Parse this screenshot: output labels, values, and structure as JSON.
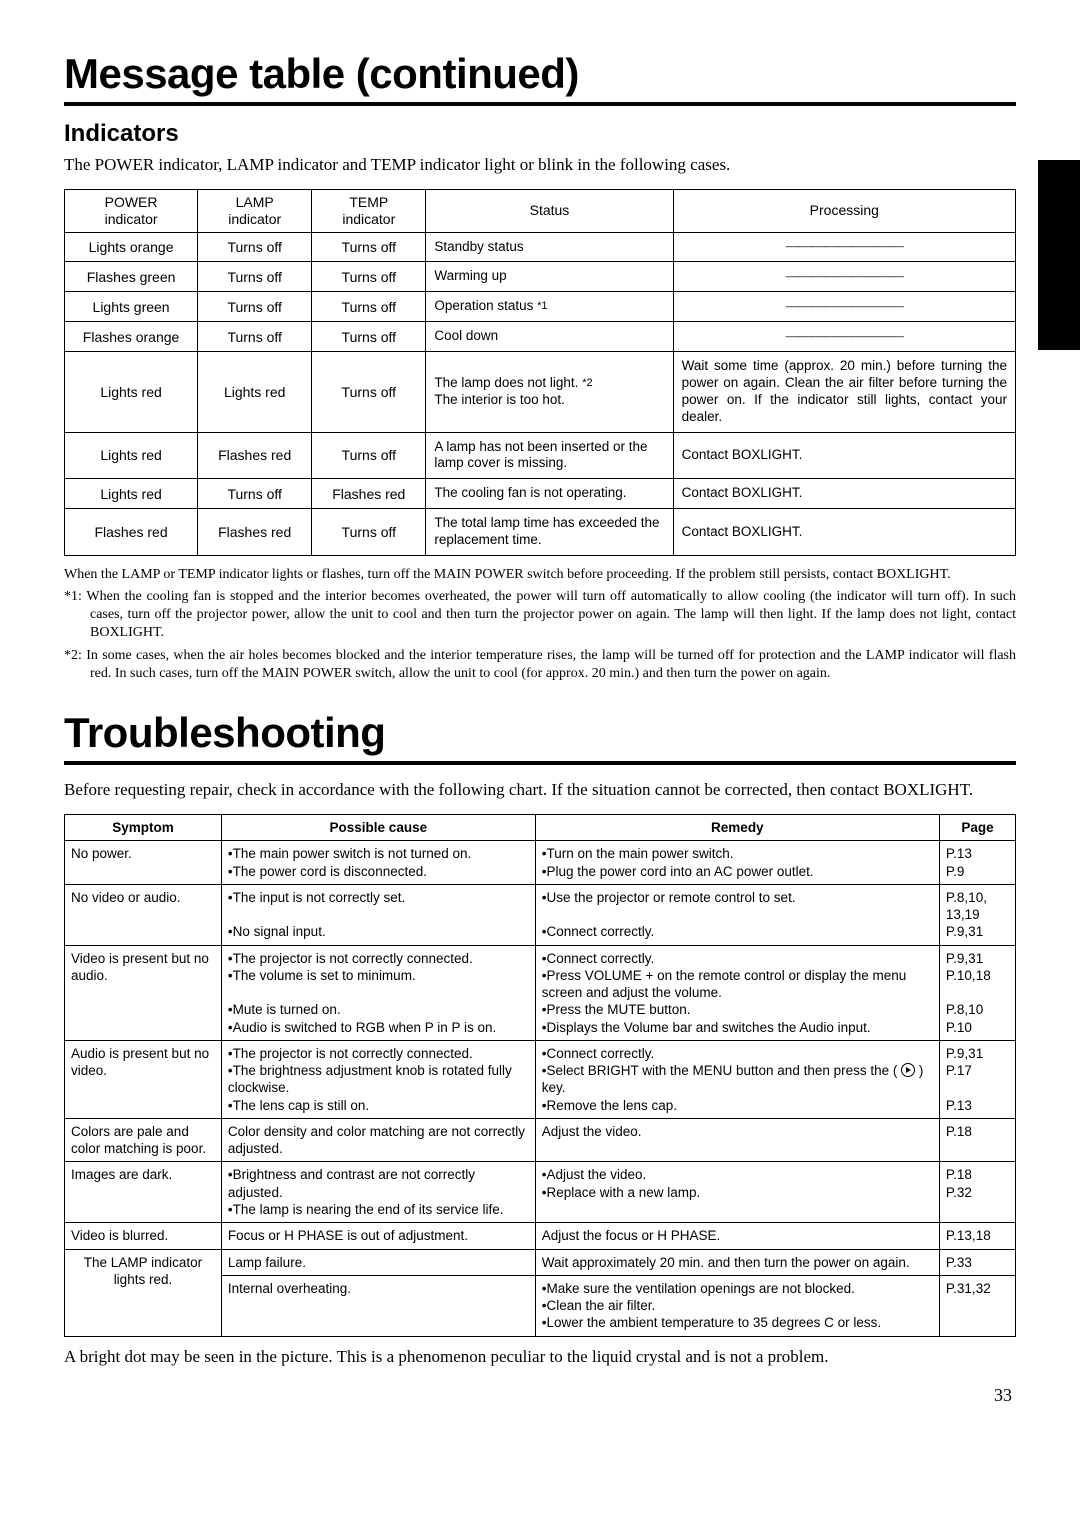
{
  "title_top": "Message table (continued)",
  "section_indicators": {
    "heading": "Indicators",
    "intro": "The POWER indicator, LAMP indicator and TEMP indicator light or blink in the following cases.",
    "columns": [
      "POWER\nindicator",
      "LAMP\nindicator",
      "TEMP\nindicator",
      "Status",
      "Processing"
    ],
    "col_widths_pct": [
      14,
      12,
      12,
      26,
      36
    ],
    "rows": [
      {
        "power": "Lights orange",
        "lamp": "Turns off",
        "temp": "Turns off",
        "status": "Standby status",
        "proc": "—————————"
      },
      {
        "power": "Flashes green",
        "lamp": "Turns off",
        "temp": "Turns off",
        "status": "Warming up",
        "proc": "—————————"
      },
      {
        "power": "Lights green",
        "lamp": "Turns off",
        "temp": "Turns off",
        "status": "Operation status *1",
        "proc": "—————————"
      },
      {
        "power": "Flashes orange",
        "lamp": "Turns off",
        "temp": "Turns off",
        "status": "Cool down",
        "proc": "—————————"
      },
      {
        "power": "Lights red",
        "lamp": "Lights red",
        "temp": "Turns off",
        "status": "The lamp does not light. *2\nThe interior is too hot.",
        "proc": "Wait some time (approx. 20 min.) before turning the power on again. Clean the air filter before turning the power on. If the indicator still lights, contact your dealer."
      },
      {
        "power": "Lights red",
        "lamp": "Flashes red",
        "temp": "Turns off",
        "status": "A lamp has not been inserted or the lamp cover is missing.",
        "proc": "Contact BOXLIGHT."
      },
      {
        "power": "Lights red",
        "lamp": "Turns off",
        "temp": "Flashes red",
        "status": "The cooling fan is not operating.",
        "proc": "Contact BOXLIGHT."
      },
      {
        "power": "Flashes red",
        "lamp": "Flashes red",
        "temp": "Turns off",
        "status": "The total lamp time has exceeded the replacement time.",
        "proc": "Contact BOXLIGHT."
      }
    ],
    "note_main": "When the LAMP or TEMP indicator lights or flashes, turn off the MAIN POWER switch before proceeding. If the problem still persists, contact BOXLIGHT.",
    "note1_label": "*1:",
    "note1": "When the cooling fan is stopped and the interior becomes overheated, the power will turn off automatically to allow cooling (the indicator will turn off). In such cases, turn off the projector power, allow the unit to cool and then turn the projector power on again. The lamp will then light. If the lamp does not light, contact BOXLIGHT.",
    "note2_label": "*2:",
    "note2": "In some cases, when the air holes becomes blocked and the interior temperature rises, the lamp will be turned off for protection and the LAMP indicator will flash red. In such cases, turn off the MAIN POWER switch, allow the unit to cool (for approx. 20 min.) and then turn the power on again."
  },
  "title_tr": "Troubleshooting",
  "tr_intro": "Before requesting repair, check in accordance with the following chart. If the situation cannot be corrected, then contact BOXLIGHT.",
  "tr_columns": [
    "Symptom",
    "Possible cause",
    "Remedy",
    "Page"
  ],
  "tr_col_widths_pct": [
    16.5,
    33,
    42.5,
    8
  ],
  "tr_rows": [
    {
      "sym": "No power.",
      "cause": "•The main power switch is not turned on.\n•The power cord is disconnected.",
      "rem": "•Turn on the main power switch.\n•Plug the power cord into an AC power outlet.",
      "page": "P.13\nP.9"
    },
    {
      "sym": "No video or audio.",
      "cause": "•The input is not correctly set.\n\n•No signal input.",
      "rem": "•Use the projector or remote control to set.\n\n•Connect correctly.",
      "page": "P.8,10,\n13,19\nP.9,31"
    },
    {
      "sym": "Video is present but no audio.",
      "cause": "•The projector is not correctly connected.\n•The volume is set to minimum.\n\n•Mute is turned on.\n•Audio is switched to RGB when P in P is on.",
      "rem": "•Connect correctly.\n•Press VOLUME + on the remote control or display the menu screen and adjust the volume.\n•Press the MUTE button.\n•Displays the Volume bar and switches the Audio input.",
      "page": "P.9,31\nP.10,18\n\nP.8,10\nP.10"
    },
    {
      "sym": "Audio is present but no video.",
      "cause": "•The projector is not correctly connected.\n•The brightness adjustment knob is rotated fully clockwise.\n•The lens cap is still on.",
      "rem": "•Connect correctly.\n•Select BRIGHT with the MENU button and then press the ( ▶ ) key.\n•Remove the lens cap.",
      "page": "P.9,31\nP.17\n\nP.13"
    },
    {
      "sym": "Colors are pale and color matching is poor.",
      "cause": "Color density and color matching are not correctly adjusted.",
      "rem": "Adjust the video.",
      "page": "P.18"
    },
    {
      "sym": "Images are dark.",
      "cause": "•Brightness and contrast are not correctly adjusted.\n•The lamp is nearing the end of its service life.",
      "rem": "•Adjust the video.\n•Replace with a new lamp.",
      "page": "P.18\nP.32"
    },
    {
      "sym": "Video is blurred.",
      "cause": "Focus or H PHASE is out of adjustment.",
      "rem": "Adjust the focus or H PHASE.",
      "page": "P.13,18"
    },
    {
      "sym": "The LAMP indicator lights red.",
      "cause": "Lamp failure.",
      "rem": "Wait approximately 20 min. and then turn the power on again.",
      "page": "P.33",
      "rowspan_sym": 2
    },
    {
      "sym": "",
      "cause": "Internal overheating.",
      "rem": "•Make sure the ventilation openings are not blocked.\n•Clean the air filter.\n•Lower the ambient temperature to 35 degrees C or less.",
      "page": "P.31,32",
      "skip_sym": true
    }
  ],
  "footer_note": "A bright dot may be seen in the picture.  This is a phenomenon peculiar to the liquid crystal and is not a problem.",
  "page_number": "33",
  "colors": {
    "text": "#000000",
    "bg": "#ffffff",
    "border": "#000000",
    "side_tab": "#000000"
  }
}
